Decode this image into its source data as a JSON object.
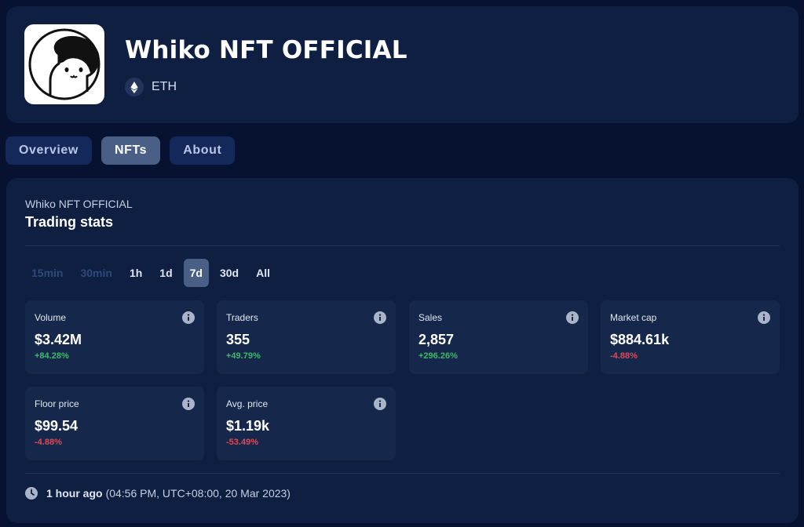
{
  "header": {
    "title": "Whiko NFT OFFICIAL",
    "chain": {
      "icon": "ethereum-icon",
      "label": "ETH"
    },
    "avatar": "whiko-cat-avatar"
  },
  "tabs": [
    {
      "label": "Overview",
      "active": false
    },
    {
      "label": "NFTs",
      "active": true
    },
    {
      "label": "About",
      "active": false
    }
  ],
  "stats": {
    "collection_name": "Whiko NFT OFFICIAL",
    "title": "Trading stats",
    "time_ranges": [
      {
        "label": "15min",
        "disabled": true
      },
      {
        "label": "30min",
        "disabled": true
      },
      {
        "label": "1h"
      },
      {
        "label": "1d"
      },
      {
        "label": "7d",
        "active": true
      },
      {
        "label": "30d"
      },
      {
        "label": "All"
      }
    ],
    "metrics": [
      {
        "label": "Volume",
        "value": "$3.42M",
        "change": "+84.28%",
        "direction": "up"
      },
      {
        "label": "Traders",
        "value": "355",
        "change": "+49.79%",
        "direction": "up"
      },
      {
        "label": "Sales",
        "value": "2,857",
        "change": "+296.26%",
        "direction": "up"
      },
      {
        "label": "Market cap",
        "value": "$884.61k",
        "change": "-4.88%",
        "direction": "down"
      },
      {
        "label": "Floor price",
        "value": "$99.54",
        "change": "-4.88%",
        "direction": "down"
      },
      {
        "label": "Avg. price",
        "value": "$1.19k",
        "change": "-53.49%",
        "direction": "down"
      }
    ],
    "updated": {
      "icon": "clock-icon",
      "ago": "1 hour ago",
      "timestamp": "(04:56 PM, UTC+08:00, 20 Mar 2023)"
    }
  },
  "colors": {
    "background": "#061230",
    "card": "#0e1f42",
    "tile": "#15284b",
    "active": "#4a5f86",
    "positive": "#3fb86a",
    "negative": "#e24855"
  }
}
